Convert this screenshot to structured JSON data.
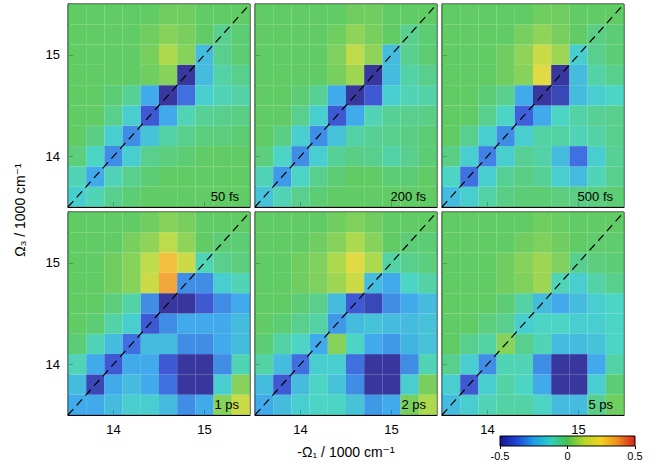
{
  "chart_data": {
    "type": "heatmap",
    "x_label": "-Ω₁ / 1000 cm⁻¹",
    "y_label": "Ω₃ / 1000 cm⁻¹",
    "xlim": [
      13.5,
      15.5
    ],
    "ylim": [
      13.5,
      15.5
    ],
    "xticks": [
      14,
      15
    ],
    "yticks": [
      14,
      15
    ],
    "x": [
      13.6,
      13.8,
      14.0,
      14.2,
      14.4,
      14.6,
      14.8,
      15.0,
      15.2,
      15.4
    ],
    "y": [
      13.6,
      13.8,
      14.0,
      14.2,
      14.4,
      14.6,
      14.8,
      15.0,
      15.2,
      15.4
    ],
    "colorbar": {
      "range": [
        -0.5,
        0.5
      ],
      "ticks": [
        -0.5,
        0,
        0.5
      ]
    },
    "panels": [
      {
        "title": "50 fs",
        "z": [
          [
            -0.15,
            -0.1,
            -0.05,
            -0.02,
            0,
            0,
            0,
            0,
            0,
            0
          ],
          [
            -0.1,
            -0.25,
            -0.1,
            -0.05,
            -0.02,
            0,
            0,
            0,
            0,
            0
          ],
          [
            -0.03,
            -0.12,
            -0.3,
            -0.15,
            -0.05,
            -0.03,
            -0.02,
            0,
            0,
            0
          ],
          [
            0,
            -0.04,
            -0.15,
            -0.3,
            -0.18,
            -0.08,
            -0.05,
            -0.03,
            -0.03,
            -0.02
          ],
          [
            0,
            0,
            -0.05,
            -0.15,
            -0.4,
            -0.25,
            -0.1,
            -0.06,
            -0.05,
            -0.04
          ],
          [
            0,
            0,
            -0.02,
            -0.06,
            -0.25,
            -0.6,
            -0.35,
            -0.15,
            -0.1,
            -0.08
          ],
          [
            0,
            0,
            0,
            0,
            0.02,
            0.05,
            -0.5,
            -0.2,
            -0.08,
            -0.05
          ],
          [
            0,
            0,
            0,
            0,
            0.03,
            0.1,
            0.05,
            -0.2,
            -0.05,
            -0.02
          ],
          [
            0,
            0,
            0,
            0,
            0.02,
            0.05,
            0.03,
            0,
            -0.05,
            -0.02
          ],
          [
            0,
            0,
            0,
            0,
            0,
            0.02,
            0.02,
            0,
            0,
            0
          ]
        ]
      },
      {
        "title": "200 fs",
        "z": [
          [
            -0.18,
            -0.1,
            -0.05,
            -0.02,
            0,
            0,
            0,
            0,
            0,
            0
          ],
          [
            -0.1,
            -0.28,
            -0.12,
            -0.05,
            -0.02,
            0,
            0,
            -0.02,
            -0.02,
            0
          ],
          [
            -0.03,
            -0.12,
            -0.3,
            -0.15,
            -0.06,
            -0.04,
            -0.05,
            -0.08,
            -0.05,
            -0.02
          ],
          [
            0,
            -0.04,
            -0.15,
            -0.3,
            -0.18,
            -0.08,
            -0.06,
            -0.05,
            -0.04,
            -0.02
          ],
          [
            0,
            0,
            -0.05,
            -0.15,
            -0.4,
            -0.25,
            -0.1,
            -0.06,
            -0.05,
            -0.04
          ],
          [
            0,
            0,
            -0.02,
            -0.06,
            -0.25,
            -0.6,
            -0.4,
            -0.15,
            -0.1,
            -0.08
          ],
          [
            0,
            0,
            0,
            0,
            0.03,
            0.08,
            -0.5,
            -0.2,
            -0.08,
            -0.05
          ],
          [
            0,
            0,
            0,
            0,
            0.04,
            0.12,
            0.06,
            -0.2,
            -0.05,
            -0.02
          ],
          [
            0,
            0,
            0,
            0,
            0.02,
            0.06,
            0.03,
            0,
            -0.05,
            -0.02
          ],
          [
            0,
            0,
            0,
            0,
            0,
            0.02,
            0.02,
            0,
            0,
            0
          ]
        ]
      },
      {
        "title": "500 fs",
        "z": [
          [
            -0.2,
            -0.15,
            -0.08,
            -0.04,
            -0.02,
            -0.02,
            -0.03,
            -0.04,
            -0.03,
            -0.02
          ],
          [
            -0.12,
            -0.35,
            -0.15,
            -0.06,
            -0.04,
            -0.06,
            -0.15,
            -0.2,
            -0.1,
            -0.05
          ],
          [
            -0.04,
            -0.15,
            -0.32,
            -0.15,
            -0.06,
            -0.08,
            -0.2,
            -0.35,
            -0.15,
            -0.06
          ],
          [
            0,
            -0.05,
            -0.15,
            -0.3,
            -0.15,
            -0.08,
            -0.08,
            -0.1,
            -0.08,
            -0.05
          ],
          [
            0,
            0,
            -0.05,
            -0.12,
            -0.38,
            -0.25,
            -0.12,
            -0.08,
            -0.06,
            -0.05
          ],
          [
            0,
            0,
            -0.02,
            -0.05,
            -0.25,
            -0.6,
            -0.45,
            -0.2,
            -0.15,
            -0.12
          ],
          [
            0,
            0,
            0,
            0.02,
            0.05,
            0.2,
            -0.5,
            -0.2,
            -0.08,
            -0.05
          ],
          [
            0,
            0,
            0,
            0.02,
            0.06,
            0.15,
            0.08,
            -0.15,
            -0.05,
            -0.02
          ],
          [
            0,
            0,
            0,
            0,
            0.03,
            0.06,
            0.03,
            0,
            -0.04,
            -0.02
          ],
          [
            0,
            0,
            0,
            0,
            0,
            0.02,
            0.02,
            0,
            0,
            0
          ]
        ]
      },
      {
        "title": "1 ps",
        "z": [
          [
            -0.25,
            -0.25,
            -0.2,
            -0.15,
            -0.15,
            -0.2,
            -0.3,
            -0.25,
            0.05,
            0.15
          ],
          [
            -0.2,
            -0.45,
            -0.25,
            -0.2,
            -0.25,
            -0.35,
            -0.6,
            -0.6,
            -0.15,
            0.05
          ],
          [
            -0.1,
            -0.25,
            -0.4,
            -0.25,
            -0.25,
            -0.4,
            -0.6,
            -0.6,
            -0.3,
            -0.1
          ],
          [
            -0.02,
            -0.1,
            -0.2,
            -0.35,
            -0.2,
            -0.2,
            -0.3,
            -0.3,
            -0.25,
            -0.2
          ],
          [
            0,
            -0.02,
            -0.08,
            -0.15,
            -0.4,
            -0.3,
            -0.25,
            -0.25,
            -0.25,
            -0.2
          ],
          [
            0,
            0,
            -0.03,
            -0.08,
            -0.3,
            -0.6,
            -0.6,
            -0.4,
            -0.3,
            -0.25
          ],
          [
            0,
            0,
            0.02,
            0.05,
            0.15,
            0.35,
            -0.3,
            -0.3,
            -0.15,
            -0.1
          ],
          [
            0,
            0,
            0.02,
            0.05,
            0.12,
            0.3,
            0.15,
            -0.1,
            -0.05,
            -0.03
          ],
          [
            0,
            0,
            0,
            0.03,
            0.06,
            0.12,
            0.06,
            0,
            -0.02,
            -0.02
          ],
          [
            0,
            0,
            0,
            0,
            0.02,
            0.05,
            0.03,
            0,
            0,
            0
          ]
        ]
      },
      {
        "title": "2 ps",
        "z": [
          [
            -0.25,
            -0.2,
            -0.15,
            -0.12,
            -0.12,
            -0.18,
            -0.28,
            -0.25,
            0.03,
            0.1
          ],
          [
            -0.2,
            -0.4,
            -0.2,
            -0.12,
            -0.18,
            -0.3,
            -0.6,
            -0.6,
            -0.15,
            0.03
          ],
          [
            -0.08,
            -0.2,
            -0.35,
            -0.15,
            -0.15,
            -0.35,
            -0.6,
            -0.6,
            -0.3,
            -0.1
          ],
          [
            -0.02,
            -0.08,
            -0.12,
            -0.25,
            0.05,
            -0.12,
            -0.25,
            -0.28,
            -0.22,
            -0.18
          ],
          [
            0,
            -0.02,
            -0.05,
            -0.08,
            -0.28,
            -0.2,
            -0.18,
            -0.2,
            -0.2,
            -0.18
          ],
          [
            0,
            0,
            -0.02,
            -0.05,
            -0.2,
            -0.4,
            -0.45,
            -0.3,
            -0.25,
            -0.2
          ],
          [
            0,
            0,
            0.02,
            0.04,
            0.08,
            0.15,
            -0.2,
            -0.25,
            -0.12,
            -0.08
          ],
          [
            0,
            0,
            0.02,
            0.04,
            0.1,
            0.2,
            0.1,
            -0.08,
            -0.05,
            -0.03
          ],
          [
            0,
            0,
            0,
            0.02,
            0.05,
            0.1,
            0.05,
            0,
            -0.02,
            -0.02
          ],
          [
            0,
            0,
            0,
            0,
            0.02,
            0.04,
            0.02,
            0,
            0,
            0
          ]
        ]
      },
      {
        "title": "5 ps",
        "z": [
          [
            -0.2,
            -0.15,
            -0.1,
            -0.08,
            -0.08,
            -0.12,
            -0.2,
            -0.2,
            -0.05,
            0.02
          ],
          [
            -0.15,
            -0.4,
            -0.15,
            -0.08,
            -0.12,
            -0.25,
            -0.5,
            -0.55,
            -0.15,
            -0.02
          ],
          [
            -0.05,
            -0.15,
            -0.3,
            -0.1,
            -0.1,
            -0.3,
            -0.6,
            -0.6,
            -0.25,
            -0.08
          ],
          [
            0,
            -0.05,
            -0.08,
            0.05,
            -0.05,
            -0.1,
            -0.2,
            -0.2,
            -0.18,
            -0.12
          ],
          [
            0,
            0,
            -0.03,
            -0.05,
            -0.15,
            -0.12,
            -0.12,
            -0.15,
            -0.15,
            -0.12
          ],
          [
            0,
            0,
            0,
            -0.02,
            -0.08,
            -0.2,
            -0.25,
            -0.2,
            -0.15,
            -0.12
          ],
          [
            0,
            0,
            0,
            0.02,
            0.04,
            0.08,
            -0.1,
            -0.15,
            -0.08,
            -0.05
          ],
          [
            0,
            0,
            0,
            0.02,
            0.05,
            0.08,
            0.04,
            -0.05,
            -0.03,
            -0.02
          ],
          [
            0,
            0,
            0,
            0,
            0.02,
            0.04,
            0.02,
            0,
            -0.01,
            -0.01
          ],
          [
            0,
            0,
            0,
            0,
            0,
            0.02,
            0.01,
            0,
            0,
            0
          ]
        ]
      }
    ]
  }
}
